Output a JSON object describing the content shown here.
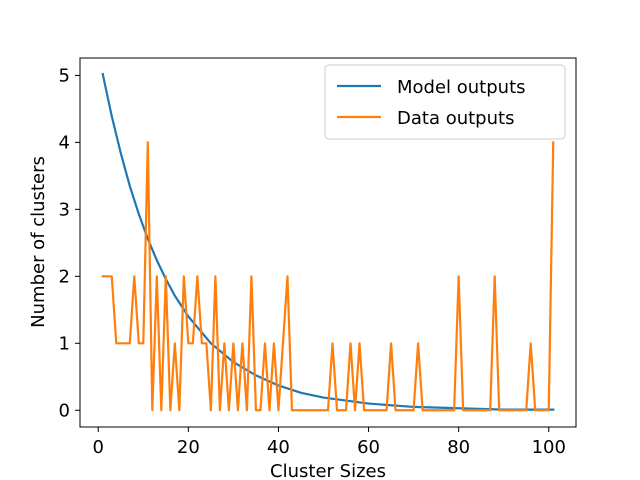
{
  "chart_data": {
    "type": "line",
    "xlabel": "Cluster Sizes",
    "ylabel": "Number of clusters",
    "xlim": [
      -4.05,
      106.05
    ],
    "ylim": [
      -0.25,
      5.26
    ],
    "xticks": [
      0,
      20,
      40,
      60,
      80,
      100
    ],
    "yticks": [
      0,
      1,
      2,
      3,
      4,
      5
    ],
    "grid": false,
    "legend_position": "top-right",
    "series": [
      {
        "name": "Model outputs",
        "color": "#1f77b4",
        "x": [
          1,
          3,
          5,
          7,
          9,
          11,
          13,
          15,
          17,
          20,
          25,
          30,
          35,
          40,
          45,
          50,
          60,
          70,
          80,
          90,
          101
        ],
        "y": [
          5.02,
          4.39,
          3.84,
          3.35,
          2.93,
          2.56,
          2.24,
          1.96,
          1.71,
          1.4,
          1.0,
          0.72,
          0.52,
          0.37,
          0.26,
          0.19,
          0.1,
          0.05,
          0.03,
          0.01,
          0.01
        ]
      },
      {
        "name": "Data outputs",
        "color": "#ff7f0e",
        "x": [
          1,
          2,
          3,
          4,
          5,
          6,
          7,
          8,
          9,
          10,
          11,
          12,
          13,
          14,
          15,
          16,
          17,
          18,
          19,
          20,
          21,
          22,
          23,
          24,
          25,
          26,
          27,
          28,
          29,
          30,
          31,
          32,
          33,
          34,
          35,
          36,
          37,
          38,
          39,
          40,
          41,
          42,
          43,
          44,
          45,
          46,
          47,
          48,
          49,
          50,
          51,
          52,
          53,
          54,
          55,
          56,
          57,
          58,
          59,
          60,
          61,
          62,
          63,
          64,
          65,
          66,
          67,
          68,
          69,
          70,
          71,
          72,
          73,
          74,
          75,
          76,
          77,
          78,
          79,
          80,
          81,
          82,
          83,
          84,
          85,
          86,
          87,
          88,
          89,
          90,
          91,
          92,
          93,
          94,
          95,
          96,
          97,
          98,
          99,
          100,
          101
        ],
        "y": [
          2,
          2,
          2,
          1,
          1,
          1,
          1,
          2,
          1,
          1,
          4,
          0,
          2,
          0,
          2,
          0,
          1,
          0,
          2,
          1,
          1,
          2,
          1,
          1,
          0,
          2,
          0,
          1,
          0,
          1,
          0,
          1,
          0,
          2,
          0,
          0,
          1,
          0,
          1,
          0,
          1,
          2,
          0,
          0,
          0,
          0,
          0,
          0,
          0,
          0,
          0,
          1,
          0,
          0,
          0,
          1,
          0,
          1,
          0,
          0,
          0,
          0,
          0,
          0,
          1,
          0,
          0,
          0,
          0,
          0,
          1,
          0,
          0,
          0,
          0,
          0,
          0,
          0,
          0,
          2,
          0,
          0,
          0,
          0,
          0,
          0,
          0,
          2,
          0,
          0,
          0,
          0,
          0,
          0,
          0,
          1,
          0,
          0,
          0,
          0,
          4
        ]
      }
    ]
  }
}
